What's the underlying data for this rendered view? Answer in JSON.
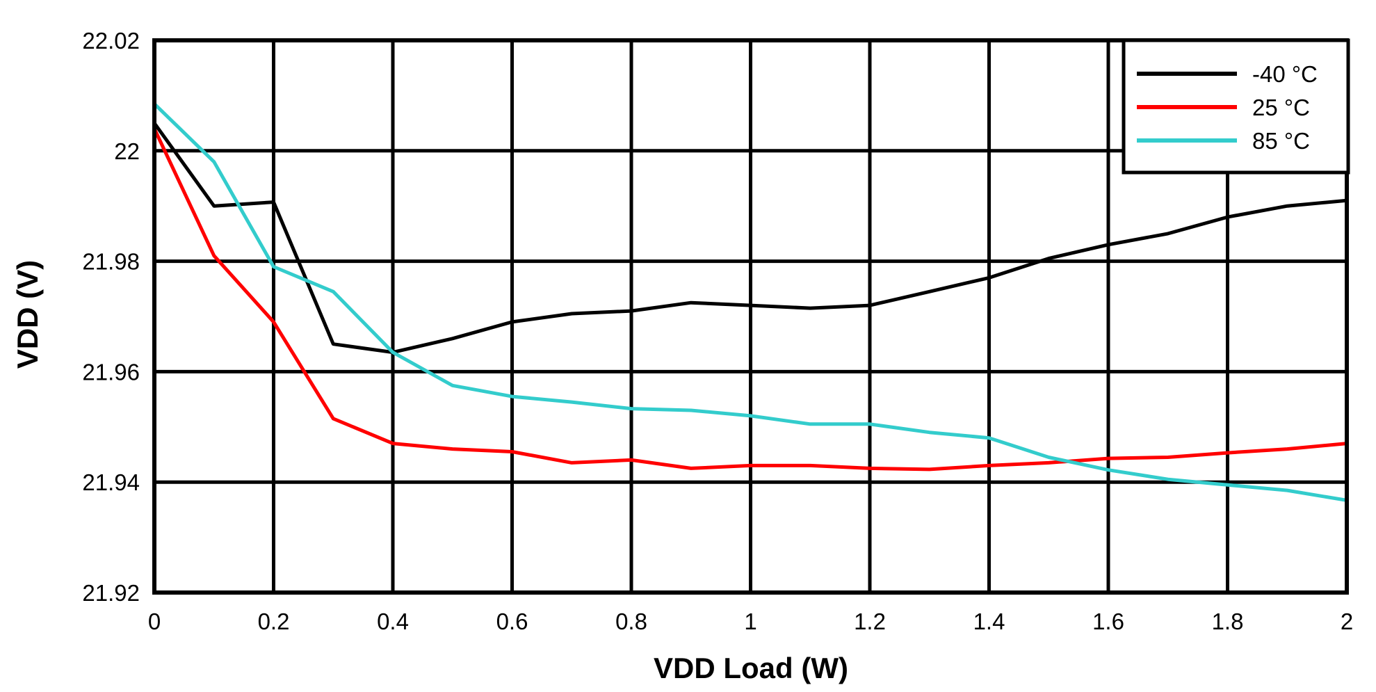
{
  "chart_data": {
    "type": "line",
    "title": "",
    "xlabel": "VDD Load (W)",
    "ylabel": "VDD (V)",
    "xlim": [
      0,
      2
    ],
    "ylim": [
      21.92,
      22.02
    ],
    "grid": true,
    "legend_position": "top-right",
    "x_ticks": [
      "0",
      "0.2",
      "0.4",
      "0.6",
      "0.8",
      "1",
      "1.2",
      "1.4",
      "1.6",
      "1.8",
      "2"
    ],
    "y_ticks": [
      "22.02",
      "22",
      "21.98",
      "21.96",
      "21.94",
      "21.92"
    ],
    "x": [
      0,
      0.1,
      0.2,
      0.3,
      0.4,
      0.5,
      0.6,
      0.7,
      0.8,
      0.9,
      1.0,
      1.1,
      1.2,
      1.3,
      1.4,
      1.5,
      1.6,
      1.7,
      1.8,
      1.9,
      2.0
    ],
    "series": [
      {
        "name": "-40 °C",
        "color": "#000000",
        "values": [
          22.005,
          21.99,
          21.9907,
          21.965,
          21.9635,
          21.966,
          21.969,
          21.9705,
          21.971,
          21.9725,
          21.972,
          21.9715,
          21.972,
          21.9745,
          21.977,
          21.9805,
          21.983,
          21.985,
          21.988,
          21.99,
          21.991
        ]
      },
      {
        "name": "25 °C",
        "color": "#ff0000",
        "values": [
          22.004,
          21.981,
          21.969,
          21.9515,
          21.947,
          21.946,
          21.9455,
          21.9435,
          21.944,
          21.9425,
          21.943,
          21.943,
          21.9425,
          21.9423,
          21.943,
          21.9435,
          21.9443,
          21.9445,
          21.9453,
          21.946,
          21.947
        ]
      },
      {
        "name": "85 °C",
        "color": "#33cccc",
        "values": [
          22.0085,
          21.998,
          21.979,
          21.9745,
          21.9635,
          21.9575,
          21.9555,
          21.9545,
          21.9533,
          21.953,
          21.952,
          21.9505,
          21.9505,
          21.949,
          21.948,
          21.9445,
          21.9422,
          21.9405,
          21.9395,
          21.9385,
          21.9367
        ]
      }
    ]
  }
}
